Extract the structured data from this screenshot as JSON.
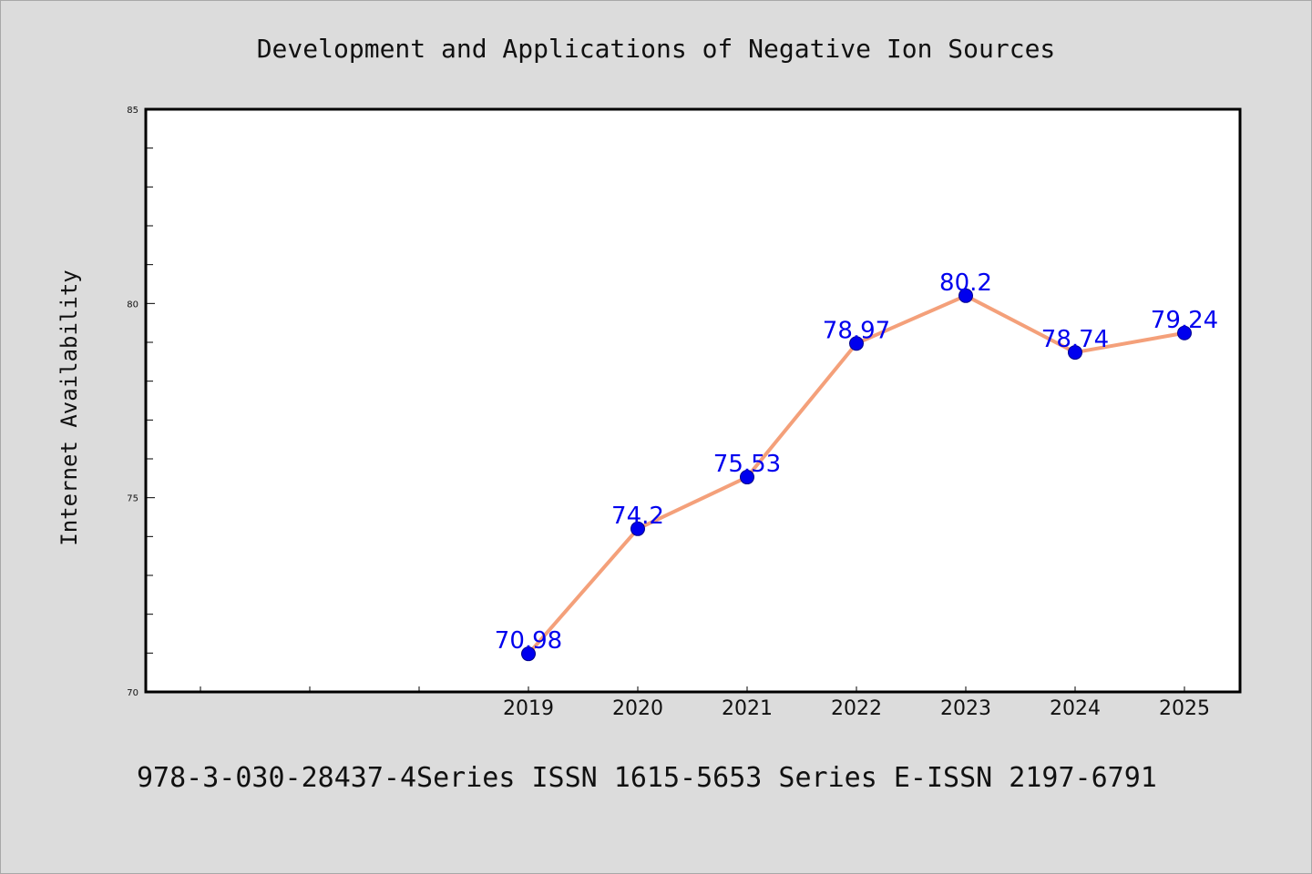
{
  "chart_data": {
    "type": "line",
    "title": "Development and Applications of Negative Ion Sources",
    "xlabel": "",
    "ylabel": "Internet Availability",
    "categories": [
      "2019",
      "2020",
      "2021",
      "2022",
      "2023",
      "2024",
      "2025"
    ],
    "series": [
      {
        "values": [
          70.98,
          74.2,
          75.53,
          78.97,
          80.2,
          78.74,
          79.24
        ],
        "data_labels": [
          "70.98",
          "74.2",
          "75.53",
          "78.97",
          "80.2",
          "78.74",
          "79.24"
        ]
      }
    ],
    "ylim": [
      70,
      85
    ],
    "yticks": [
      "70",
      "75",
      "80",
      "85"
    ],
    "grid": false,
    "legend": "none",
    "line_color": "#f4a07a",
    "marker_color": "#0000ee",
    "label_color": "#0000ee"
  },
  "footer": {
    "text": "978-3-030-28437-4Series ISSN 1615-5653 Series E-ISSN 2197-6791"
  }
}
